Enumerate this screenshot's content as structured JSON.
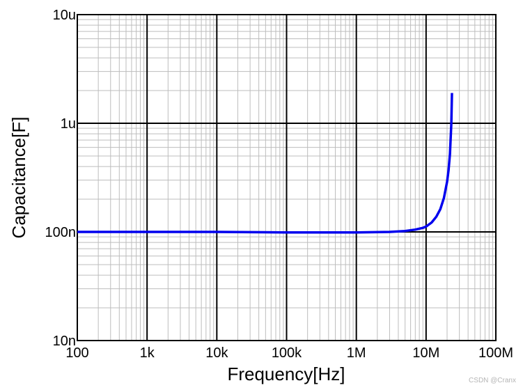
{
  "chart_data": {
    "type": "line",
    "xlabel": "Frequency[Hz]",
    "ylabel": "Capacitance[F]",
    "x_scale": "log",
    "y_scale": "log",
    "xlim": [
      100,
      100000000
    ],
    "ylim": [
      1e-08,
      1e-05
    ],
    "x_ticks": [
      {
        "value": 100,
        "label": "100"
      },
      {
        "value": 1000,
        "label": "1k"
      },
      {
        "value": 10000,
        "label": "10k"
      },
      {
        "value": 100000,
        "label": "100k"
      },
      {
        "value": 1000000,
        "label": "1M"
      },
      {
        "value": 10000000,
        "label": "10M"
      },
      {
        "value": 100000000,
        "label": "100M"
      }
    ],
    "y_ticks": [
      {
        "value": 1e-08,
        "label": "10n"
      },
      {
        "value": 1e-07,
        "label": "100n"
      },
      {
        "value": 1e-06,
        "label": "1u"
      },
      {
        "value": 1e-05,
        "label": "10u"
      }
    ],
    "grid": true,
    "series": [
      {
        "color": "#0000ee",
        "x": [
          100,
          1000,
          10000,
          100000,
          1000000,
          3000000,
          5000000,
          7000000,
          9000000,
          10000000,
          12000000,
          14000000,
          16000000,
          18000000,
          20000000,
          21000000,
          22000000,
          23000000,
          23500000
        ],
        "y": [
          1e-07,
          1e-07,
          1e-07,
          9.9e-08,
          9.9e-08,
          1e-07,
          1.02e-07,
          1.05e-07,
          1.09e-07,
          1.12e-07,
          1.22e-07,
          1.38e-07,
          1.62e-07,
          2.05e-07,
          2.9e-07,
          3.7e-07,
          5.2e-07,
          1e-06,
          1.9e-06
        ]
      }
    ]
  },
  "watermark": "CSDN @Cranx"
}
